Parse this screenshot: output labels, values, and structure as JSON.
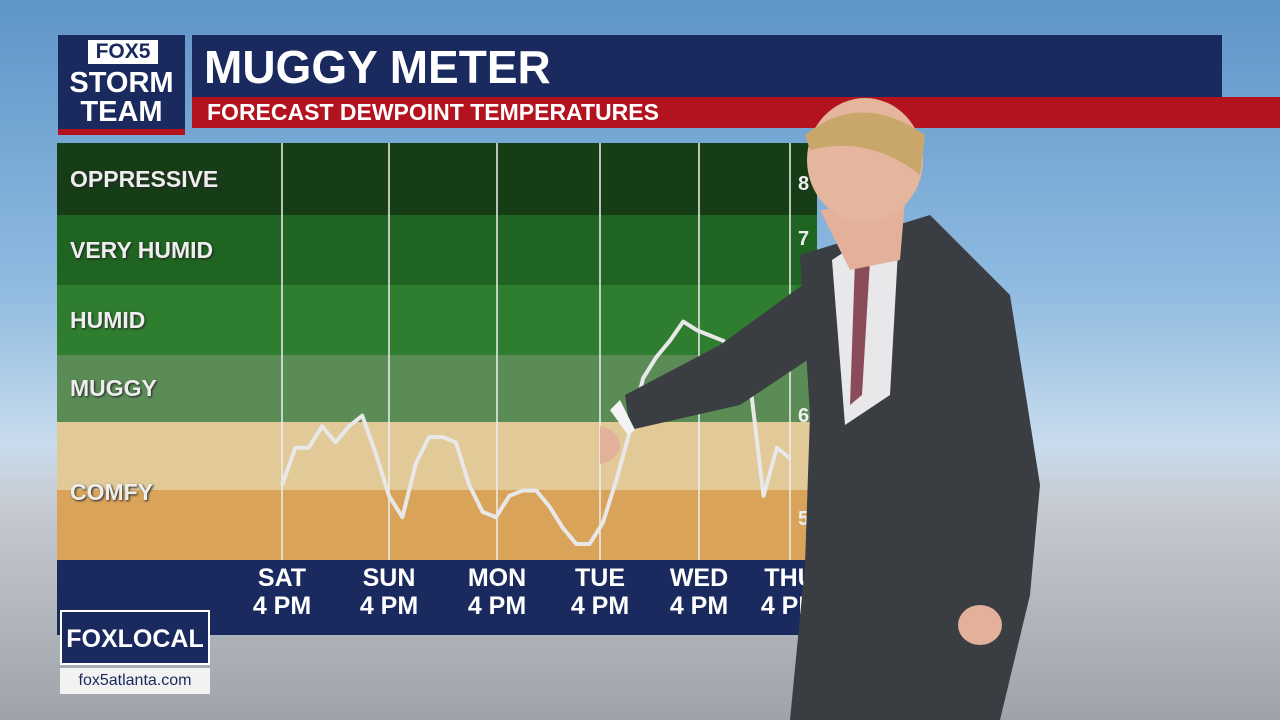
{
  "logo": {
    "top": "FOX5",
    "line1": "STORM",
    "line2": "TEAM"
  },
  "header": {
    "title": "MUGGY METER",
    "subtitle": "FORECAST DEWPOINT TEMPERATURES"
  },
  "footer": {
    "brand": "FOXLOCAL",
    "url": "fox5atlanta.com"
  },
  "colors": {
    "navy": "#1b2a5e",
    "red": "#b3121f",
    "oppressive": "#173d17",
    "very_humid": "#1f6420",
    "humid": "#2f7d2f",
    "muggy": "#5c8c56",
    "comfy_upper": "#e1c998",
    "comfy_lower": "#d9a35a",
    "line": "#e8e8e8"
  },
  "chart_data": {
    "type": "line",
    "title": "MUGGY METER",
    "subtitle": "FORECAST DEWPOINT TEMPERATURES",
    "ylim": [
      46,
      85
    ],
    "bands": [
      {
        "label": "OPPRESSIVE",
        "from": 79,
        "to": 85
      },
      {
        "label": "VERY HUMID",
        "from": 72.4,
        "to": 79
      },
      {
        "label": "HUMID",
        "from": 65.7,
        "to": 72.4
      },
      {
        "label": "MUGGY",
        "from": 59.3,
        "to": 65.7
      },
      {
        "label": "COMFY",
        "from": 46,
        "to": 59.3
      }
    ],
    "right_tick_labels": [
      "8",
      "7",
      "6",
      "5"
    ],
    "categories": [
      {
        "day": "SAT",
        "time": "4 PM"
      },
      {
        "day": "SUN",
        "time": "4 PM"
      },
      {
        "day": "MON",
        "time": "4 PM"
      },
      {
        "day": "TUE",
        "time": "4 PM"
      },
      {
        "day": "WED",
        "time": "4 PM"
      },
      {
        "day": "THU",
        "time": "4 PM"
      }
    ],
    "series": [
      {
        "points": [
          [
            "Sat 4 PM",
            53
          ],
          [
            "Sat 7 PM",
            56.5
          ],
          [
            "Sat 10 PM",
            56.5
          ],
          [
            "Sun 1 AM",
            58.5
          ],
          [
            "Sun 4 AM",
            57
          ],
          [
            "Sun 7 AM",
            58.5
          ],
          [
            "Sun 10 AM",
            59.5
          ],
          [
            "Sun 1 PM",
            56
          ],
          [
            "Sun 4 PM",
            52
          ],
          [
            "Sun 7 PM",
            50
          ],
          [
            "Sun 10 PM",
            55
          ],
          [
            "Mon 1 AM",
            57.5
          ],
          [
            "Mon 4 AM",
            57.5
          ],
          [
            "Mon 7 AM",
            57
          ],
          [
            "Mon 10 AM",
            53
          ],
          [
            "Mon 1 PM",
            50.5
          ],
          [
            "Mon 4 PM",
            50
          ],
          [
            "Mon 7 PM",
            52
          ],
          [
            "Mon 10 PM",
            52.5
          ],
          [
            "Tue 1 AM",
            52.5
          ],
          [
            "Tue 4 AM",
            51
          ],
          [
            "Tue 7 AM",
            49
          ],
          [
            "Tue 10 AM",
            47.5
          ],
          [
            "Tue 1 PM",
            47.5
          ],
          [
            "Tue 4 PM",
            49.5
          ],
          [
            "Tue 7 PM",
            53.5
          ],
          [
            "Tue 10 PM",
            58
          ],
          [
            "Wed 1 AM",
            63
          ],
          [
            "Wed 4 AM",
            65
          ],
          [
            "Wed 7 AM",
            66.5
          ],
          [
            "Wed 10 AM",
            68.3
          ],
          [
            "Wed 1 PM",
            67.5
          ],
          [
            "Wed 4 PM",
            67
          ],
          [
            "Wed 7 PM",
            66.5
          ],
          [
            "Wed 10 PM",
            64
          ],
          [
            "Thu 1 AM",
            62.5
          ],
          [
            "Thu 4 AM",
            52
          ],
          [
            "Thu 7 AM",
            56.5
          ],
          [
            "Thu 10 AM",
            55.5
          ]
        ]
      }
    ],
    "grid": "vertical lines at each day"
  }
}
